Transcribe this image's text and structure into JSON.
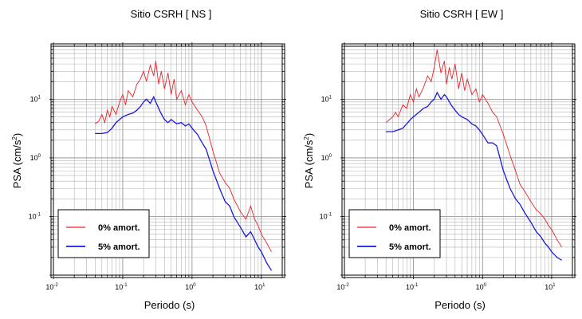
{
  "chart_data": [
    {
      "type": "line",
      "title": "Sitio CSRH [ NS ]",
      "xlabel": "Periodo (s)",
      "ylabel": "PSA (cm/s",
      "ylabel_sup": "2",
      "ylabel_close": ")",
      "x_scale": "log",
      "y_scale": "log",
      "xlim": [
        0.01,
        20
      ],
      "ylim": [
        0.01,
        80
      ],
      "grid": true,
      "legend_position": "bottom-left",
      "x_ticks": [
        {
          "base": "10",
          "exp": "-2",
          "value": 0.01
        },
        {
          "base": "10",
          "exp": "-1",
          "value": 0.1
        },
        {
          "base": "10",
          "exp": "0",
          "value": 1
        },
        {
          "base": "10",
          "exp": "1",
          "value": 10
        }
      ],
      "y_ticks": [
        {
          "base": "10",
          "exp": "-1",
          "value": 0.1
        },
        {
          "base": "10",
          "exp": "0",
          "value": 1
        },
        {
          "base": "10",
          "exp": "1",
          "value": 10
        }
      ],
      "series": [
        {
          "name": "0% amort.",
          "color": "#e8232a",
          "x": [
            0.04,
            0.045,
            0.05,
            0.055,
            0.06,
            0.065,
            0.07,
            0.08,
            0.09,
            0.1,
            0.11,
            0.12,
            0.14,
            0.16,
            0.18,
            0.2,
            0.22,
            0.25,
            0.28,
            0.3,
            0.33,
            0.36,
            0.4,
            0.45,
            0.5,
            0.55,
            0.6,
            0.7,
            0.8,
            0.9,
            1.0,
            1.2,
            1.4,
            1.6,
            2.0,
            2.5,
            3.0,
            3.5,
            4.0,
            5.0,
            6.0,
            7.0,
            8.0,
            9.0,
            10.0,
            12.0,
            14.0
          ],
          "y": [
            3.8,
            4.2,
            5.5,
            4.0,
            6.5,
            5.0,
            7.5,
            5.5,
            9.0,
            12.0,
            8.0,
            14.0,
            11.0,
            18.0,
            22.0,
            30.0,
            20.0,
            38.0,
            25.0,
            45.0,
            18.0,
            30.0,
            15.0,
            28.0,
            12.0,
            22.0,
            10.0,
            14.0,
            8.0,
            12.0,
            9.0,
            6.5,
            5.0,
            3.5,
            1.3,
            0.55,
            0.38,
            0.3,
            0.2,
            0.12,
            0.09,
            0.15,
            0.09,
            0.07,
            0.05,
            0.035,
            0.025
          ]
        },
        {
          "name": "5% amort.",
          "color": "#1a1adc",
          "x": [
            0.04,
            0.05,
            0.06,
            0.07,
            0.08,
            0.09,
            0.1,
            0.12,
            0.14,
            0.16,
            0.18,
            0.2,
            0.22,
            0.25,
            0.28,
            0.3,
            0.35,
            0.4,
            0.45,
            0.5,
            0.6,
            0.7,
            0.8,
            0.9,
            1.0,
            1.2,
            1.4,
            1.6,
            2.0,
            2.5,
            3.0,
            3.5,
            4.0,
            5.0,
            6.0,
            7.0,
            8.0,
            9.0,
            10.0,
            12.0,
            14.0
          ],
          "y": [
            2.6,
            2.6,
            2.7,
            3.2,
            4.0,
            4.5,
            5.0,
            5.5,
            5.8,
            6.5,
            7.5,
            9.0,
            10.0,
            8.5,
            11.0,
            9.0,
            6.0,
            4.5,
            4.0,
            4.5,
            3.8,
            4.0,
            3.5,
            3.8,
            3.2,
            2.5,
            1.8,
            1.4,
            0.6,
            0.3,
            0.18,
            0.15,
            0.1,
            0.065,
            0.045,
            0.055,
            0.04,
            0.03,
            0.025,
            0.016,
            0.012
          ]
        }
      ]
    },
    {
      "type": "line",
      "title": "Sitio CSRH [ EW ]",
      "xlabel": "Periodo (s)",
      "ylabel": "PSA (cm/s",
      "ylabel_sup": "2",
      "ylabel_close": ")",
      "x_scale": "log",
      "y_scale": "log",
      "xlim": [
        0.01,
        20
      ],
      "ylim": [
        0.01,
        80
      ],
      "grid": true,
      "legend_position": "bottom-left",
      "x_ticks": [
        {
          "base": "10",
          "exp": "-2",
          "value": 0.01
        },
        {
          "base": "10",
          "exp": "-1",
          "value": 0.1
        },
        {
          "base": "10",
          "exp": "0",
          "value": 1
        },
        {
          "base": "10",
          "exp": "1",
          "value": 10
        }
      ],
      "y_ticks": [
        {
          "base": "10",
          "exp": "-1",
          "value": 0.1
        },
        {
          "base": "10",
          "exp": "0",
          "value": 1
        },
        {
          "base": "10",
          "exp": "1",
          "value": 10
        }
      ],
      "series": [
        {
          "name": "0% amort.",
          "color": "#e8232a",
          "x": [
            0.04,
            0.045,
            0.05,
            0.055,
            0.06,
            0.07,
            0.08,
            0.09,
            0.1,
            0.11,
            0.12,
            0.14,
            0.16,
            0.18,
            0.2,
            0.22,
            0.25,
            0.28,
            0.3,
            0.33,
            0.36,
            0.4,
            0.45,
            0.5,
            0.55,
            0.6,
            0.7,
            0.8,
            0.9,
            1.0,
            1.2,
            1.4,
            1.6,
            2.0,
            2.5,
            3.0,
            3.5,
            4.0,
            5.0,
            6.0,
            7.0,
            8.0,
            9.0,
            10.0,
            12.0,
            14.0
          ],
          "y": [
            4.0,
            4.5,
            5.0,
            6.0,
            5.0,
            8.0,
            7.0,
            12.0,
            9.0,
            15.0,
            11.0,
            16.0,
            25.0,
            20.0,
            35.0,
            70.0,
            28.0,
            45.0,
            18.0,
            35.0,
            22.0,
            40.0,
            15.0,
            28.0,
            14.0,
            22.0,
            12.0,
            15.0,
            9.0,
            12.0,
            8.5,
            6.0,
            5.0,
            2.5,
            1.1,
            0.6,
            0.35,
            0.28,
            0.18,
            0.13,
            0.11,
            0.09,
            0.07,
            0.06,
            0.04,
            0.03
          ]
        },
        {
          "name": "5% amort.",
          "color": "#1a1adc",
          "x": [
            0.04,
            0.05,
            0.06,
            0.07,
            0.08,
            0.09,
            0.1,
            0.12,
            0.14,
            0.16,
            0.18,
            0.2,
            0.22,
            0.25,
            0.28,
            0.3,
            0.35,
            0.4,
            0.45,
            0.5,
            0.6,
            0.7,
            0.8,
            0.9,
            1.0,
            1.2,
            1.4,
            1.6,
            2.0,
            2.5,
            3.0,
            3.5,
            4.0,
            5.0,
            6.0,
            7.0,
            8.0,
            9.0,
            10.0,
            12.0,
            14.0
          ],
          "y": [
            2.8,
            2.8,
            3.0,
            3.2,
            3.8,
            4.5,
            5.0,
            6.0,
            7.0,
            7.5,
            9.0,
            10.0,
            13.0,
            10.0,
            12.0,
            11.0,
            8.0,
            6.5,
            5.5,
            5.0,
            4.5,
            3.8,
            3.5,
            3.0,
            2.5,
            1.8,
            1.8,
            1.6,
            0.6,
            0.3,
            0.2,
            0.16,
            0.12,
            0.08,
            0.055,
            0.045,
            0.035,
            0.03,
            0.025,
            0.02,
            0.018
          ]
        }
      ]
    }
  ]
}
